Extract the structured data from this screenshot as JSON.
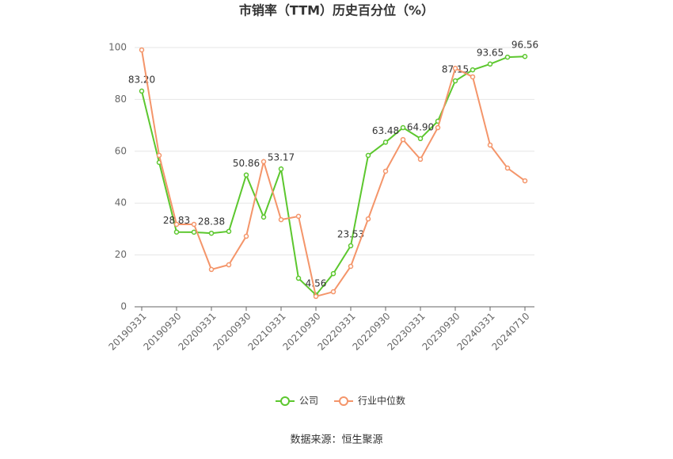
{
  "chart_data": {
    "type": "line",
    "title": "市销率（TTM）历史百分位（%）",
    "categories": [
      "20190331",
      null,
      "20190930",
      null,
      "20200331",
      null,
      "20200930",
      null,
      "20210331",
      null,
      "20210930",
      null,
      "20220331",
      null,
      "20220930",
      null,
      "20230331",
      null,
      "20230930",
      null,
      "20240331",
      null,
      "20240710"
    ],
    "series": [
      {
        "name": "公司",
        "color": "#5cc72e",
        "values": [
          83.2,
          55.7,
          28.83,
          28.8,
          28.38,
          29.1,
          50.86,
          34.6,
          53.17,
          11.0,
          4.56,
          12.8,
          23.53,
          58.4,
          63.48,
          69.1,
          64.9,
          71.6,
          87.15,
          91.4,
          93.65,
          96.3,
          96.56
        ],
        "value_labels": [
          "83.20",
          null,
          "28.83",
          null,
          "28.38",
          null,
          "50.86",
          null,
          "53.17",
          null,
          "4.56",
          null,
          "23.53",
          null,
          "63.48",
          null,
          "64.90",
          null,
          "87.15",
          null,
          "93.65",
          null,
          "96.56"
        ]
      },
      {
        "name": "行业中位数",
        "color": "#f4956a",
        "values": [
          99.1,
          58.4,
          31.8,
          31.8,
          14.4,
          16.2,
          27.2,
          56.0,
          33.6,
          34.9,
          4.0,
          5.8,
          15.6,
          33.9,
          52.3,
          64.5,
          56.9,
          69.1,
          92.0,
          88.7,
          62.4,
          53.5,
          48.6
        ]
      }
    ],
    "ylim": [
      0,
      100
    ],
    "yticks": [
      0,
      20,
      40,
      60,
      80,
      100
    ],
    "grid": true,
    "source": "数据来源：恒生聚源"
  }
}
